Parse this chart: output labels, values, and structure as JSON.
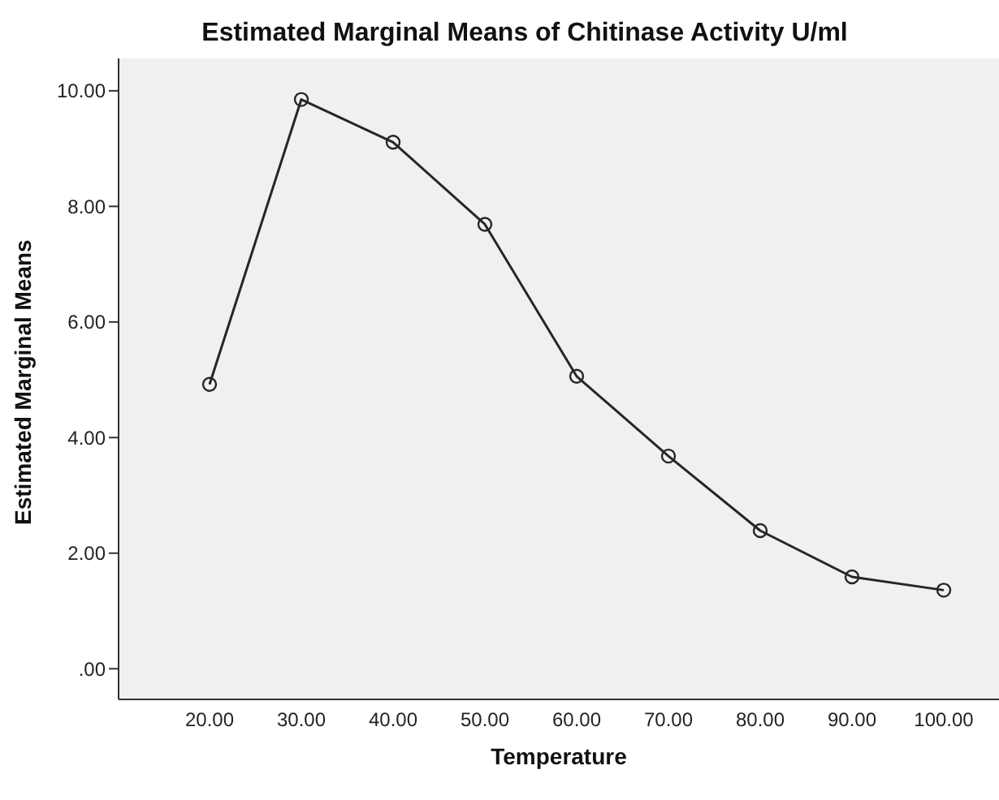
{
  "chart_data": {
    "type": "line",
    "title": "Estimated Marginal Means of Chitinase Activity U/ml",
    "xlabel": "Temperature",
    "ylabel": "Estimated Marginal Means",
    "categories": [
      "20.00",
      "30.00",
      "40.00",
      "50.00",
      "60.00",
      "70.00",
      "80.00",
      "90.00",
      "100.00"
    ],
    "series": [
      {
        "color": "#262626",
        "values": [
          4.92,
          9.85,
          9.11,
          7.69,
          5.06,
          3.68,
          2.39,
          1.59,
          1.36
        ]
      }
    ],
    "ylim": [
      -0.53,
      10.56
    ],
    "yticks": [
      {
        "value": 0,
        "label": ".00"
      },
      {
        "value": 2,
        "label": "2.00"
      },
      {
        "value": 4,
        "label": "4.00"
      },
      {
        "value": 6,
        "label": "6.00"
      },
      {
        "value": 8,
        "label": "8.00"
      },
      {
        "value": 10,
        "label": "10.00"
      }
    ],
    "grid": false,
    "marker": "circle",
    "line_style": "solid"
  }
}
